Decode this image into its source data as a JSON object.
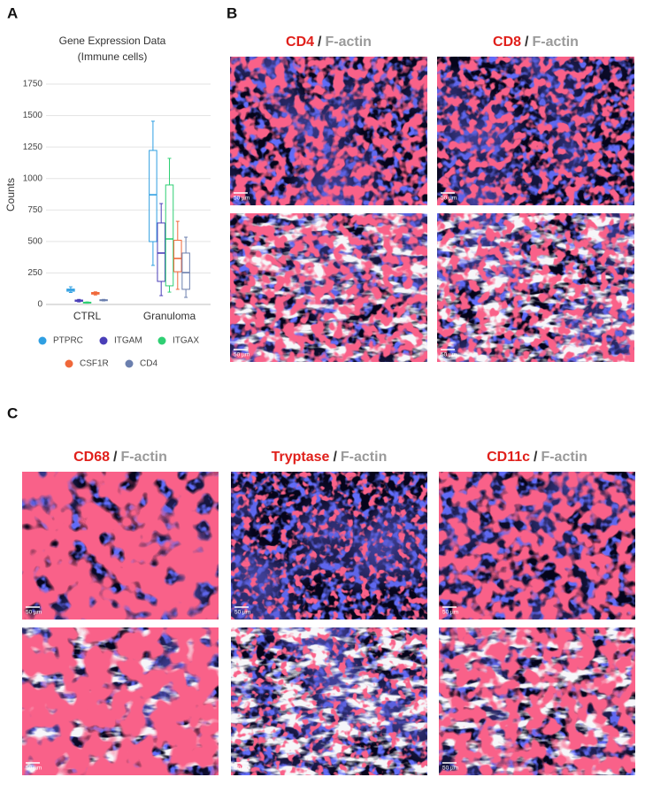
{
  "panel_labels": [
    "A",
    "B",
    "C"
  ],
  "chart_data": {
    "type": "box",
    "title": "Gene Expression Data",
    "subtitle": "(Immune cells)",
    "ylabel": "Counts",
    "categories": [
      "CTRL",
      "Granuloma"
    ],
    "ylim": [
      0,
      1750
    ],
    "yticks": [
      0,
      250,
      500,
      750,
      1000,
      1250,
      1500,
      1750
    ],
    "grid": true,
    "legend": "bottom",
    "series": [
      {
        "name": "PTPRC",
        "color": "#2f9fe2",
        "values": [
          [
            95,
            105,
            115,
            122,
            140
          ],
          [
            310,
            499,
            871,
            1223,
            1455
          ]
        ]
      },
      {
        "name": "ITGAM",
        "color": "#4a3fb8",
        "values": [
          [
            20,
            25,
            30,
            35,
            40
          ],
          [
            70,
            183,
            408,
            647,
            801
          ]
        ]
      },
      {
        "name": "ITGAX",
        "color": "#2fcf73",
        "values": [
          [
            10,
            12,
            15,
            18,
            20
          ],
          [
            98,
            148,
            520,
            949,
            1160
          ]
        ]
      },
      {
        "name": "CSF1R",
        "color": "#f0683a",
        "values": [
          [
            75,
            82,
            88,
            95,
            100
          ],
          [
            120,
            260,
            365,
            510,
            660
          ]
        ]
      },
      {
        "name": "CD4",
        "color": "#6b7fae",
        "values": [
          [
            28,
            31,
            34,
            37,
            40
          ],
          [
            56,
            120,
            253,
            408,
            534
          ]
        ]
      }
    ]
  },
  "panel_b": {
    "columns": [
      {
        "marker": "CD4",
        "separator": "/",
        "stain": "F-actin",
        "images": [
          {
            "scale_label": "50 µm"
          },
          {
            "scale_label": "50 µm"
          }
        ]
      },
      {
        "marker": "CD8",
        "separator": "/",
        "stain": "F-actin",
        "images": [
          {
            "scale_label": "50 µm"
          },
          {
            "scale_label": "50 µm"
          }
        ]
      }
    ]
  },
  "panel_c": {
    "columns": [
      {
        "marker": "CD68",
        "separator": "/",
        "stain": "F-actin",
        "images": [
          {
            "scale_label": "50 µm"
          },
          {
            "scale_label": "50 µm"
          }
        ]
      },
      {
        "marker": "Tryptase",
        "separator": "/",
        "stain": "F-actin",
        "images": [
          {
            "scale_label": "50 µm"
          },
          {
            "scale_label": "50 µm"
          }
        ]
      },
      {
        "marker": "CD11c",
        "separator": "/",
        "stain": "F-actin",
        "images": [
          {
            "scale_label": "50 µm"
          },
          {
            "scale_label": "50 µm"
          }
        ]
      }
    ]
  }
}
